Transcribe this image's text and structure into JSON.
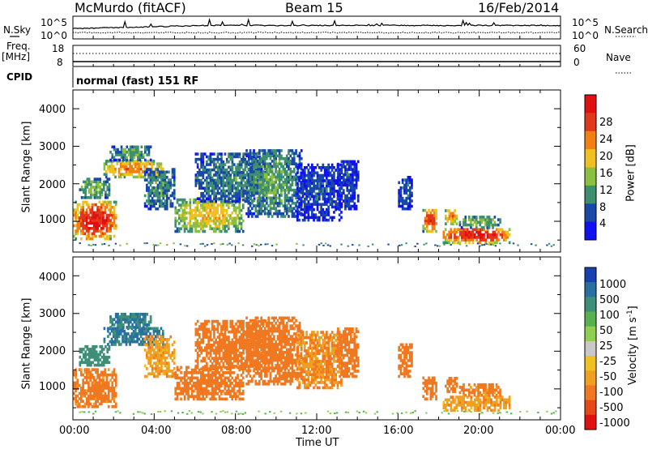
{
  "header": {
    "station": "McMurdo (fitACF)",
    "beam": "Beam 15",
    "date": "16/Feb/2014"
  },
  "top_panel": {
    "left_label": "N.Sky",
    "left_ticks": [
      "10^5",
      "10^0"
    ],
    "right_label": "N.Search",
    "right_ticks": [
      "10^5",
      "10^0"
    ]
  },
  "freq_panel": {
    "left_label_1": "Freq.",
    "left_label_2": "[MHz]",
    "left_ticks": [
      "18",
      "8"
    ],
    "right_label": "Nave",
    "right_ticks": [
      "60",
      "0"
    ],
    "cpid_label": "CPID",
    "mode_text": "normal (fast) 151 RF"
  },
  "power_panel": {
    "ylabel": "Slant Range [km]",
    "yticks": [
      "1000",
      "2000",
      "3000",
      "4000"
    ],
    "colorbar_label": "Power [dB]",
    "colorbar_ticks": [
      "4",
      "8",
      "12",
      "16",
      "20",
      "24",
      "28"
    ],
    "colors": [
      "#1010f0",
      "#1848a8",
      "#3e8f70",
      "#8bbf40",
      "#f0c020",
      "#f08010",
      "#e03818",
      "#e01010"
    ]
  },
  "velocity_panel": {
    "ylabel": "Slant Range [km]",
    "yticks": [
      "1000",
      "2000",
      "3000",
      "4000"
    ],
    "colorbar_label": "Velocity [m s^-1]",
    "colorbar_ticks": [
      "1000",
      "500",
      "100",
      "50",
      "25",
      "-25",
      "-50",
      "-100",
      "-500",
      "-1000"
    ],
    "colors": [
      "#1840b0",
      "#2870a0",
      "#3e8f78",
      "#58b050",
      "#90d050",
      "#c8c8c8",
      "#f0c020",
      "#f0a020",
      "#f07820",
      "#e84818",
      "#e01010"
    ]
  },
  "x_axis": {
    "ticks": [
      "00:00",
      "04:00",
      "08:00",
      "12:00",
      "16:00",
      "20:00",
      "00:00"
    ],
    "label": "Time UT"
  },
  "chart_data": {
    "type": "heatmap",
    "title": "McMurdo (fitACF) Beam 15 16/Feb/2014",
    "xlabel": "Time UT",
    "ylabel": "Slant Range [km]",
    "xlim_hours": [
      0,
      24
    ],
    "ylim_km": [
      180,
      4500
    ],
    "power_range_db": [
      0,
      30
    ],
    "velocity_range_ms": [
      -1000,
      1000
    ],
    "echo_regions": [
      {
        "t0": 0.0,
        "t1": 2.1,
        "r0": 500,
        "r1": 1500,
        "power": 26,
        "velocity": -150
      },
      {
        "t0": 0.3,
        "t1": 1.8,
        "r0": 1600,
        "r1": 2100,
        "power": 12,
        "velocity": 200
      },
      {
        "t0": 1.5,
        "t1": 4.4,
        "r0": 2150,
        "r1": 2600,
        "power": 20,
        "velocity": 600
      },
      {
        "t0": 1.8,
        "t1": 3.8,
        "r0": 2600,
        "r1": 3000,
        "power": 10,
        "velocity": 500
      },
      {
        "t0": 3.5,
        "t1": 5.0,
        "r0": 1300,
        "r1": 2400,
        "power": 9,
        "velocity": -80
      },
      {
        "t0": 5.0,
        "t1": 8.4,
        "r0": 700,
        "r1": 1600,
        "power": 16,
        "velocity": -300
      },
      {
        "t0": 6.0,
        "t1": 9.5,
        "r0": 1500,
        "r1": 2800,
        "power": 8,
        "velocity": -200
      },
      {
        "t0": 8.5,
        "t1": 11.2,
        "r0": 1100,
        "r1": 2900,
        "power": 10,
        "velocity": -250
      },
      {
        "t0": 11.0,
        "t1": 13.2,
        "r0": 1000,
        "r1": 2500,
        "power": 5,
        "velocity": -100
      },
      {
        "t0": 13.0,
        "t1": 14.0,
        "r0": 1300,
        "r1": 2600,
        "power": 5,
        "velocity": -200
      },
      {
        "t0": 16.0,
        "t1": 16.7,
        "r0": 1300,
        "r1": 2200,
        "power": 6,
        "velocity": -300
      },
      {
        "t0": 17.2,
        "t1": 17.9,
        "r0": 700,
        "r1": 1300,
        "power": 24,
        "velocity": -250
      },
      {
        "t0": 18.3,
        "t1": 18.9,
        "r0": 900,
        "r1": 1300,
        "power": 20,
        "velocity": -200
      },
      {
        "t0": 18.2,
        "t1": 21.5,
        "r0": 400,
        "r1": 800,
        "power": 26,
        "velocity": -80
      },
      {
        "t0": 19.0,
        "t1": 21.0,
        "r0": 800,
        "r1": 1100,
        "power": 12,
        "velocity": -150
      }
    ]
  }
}
